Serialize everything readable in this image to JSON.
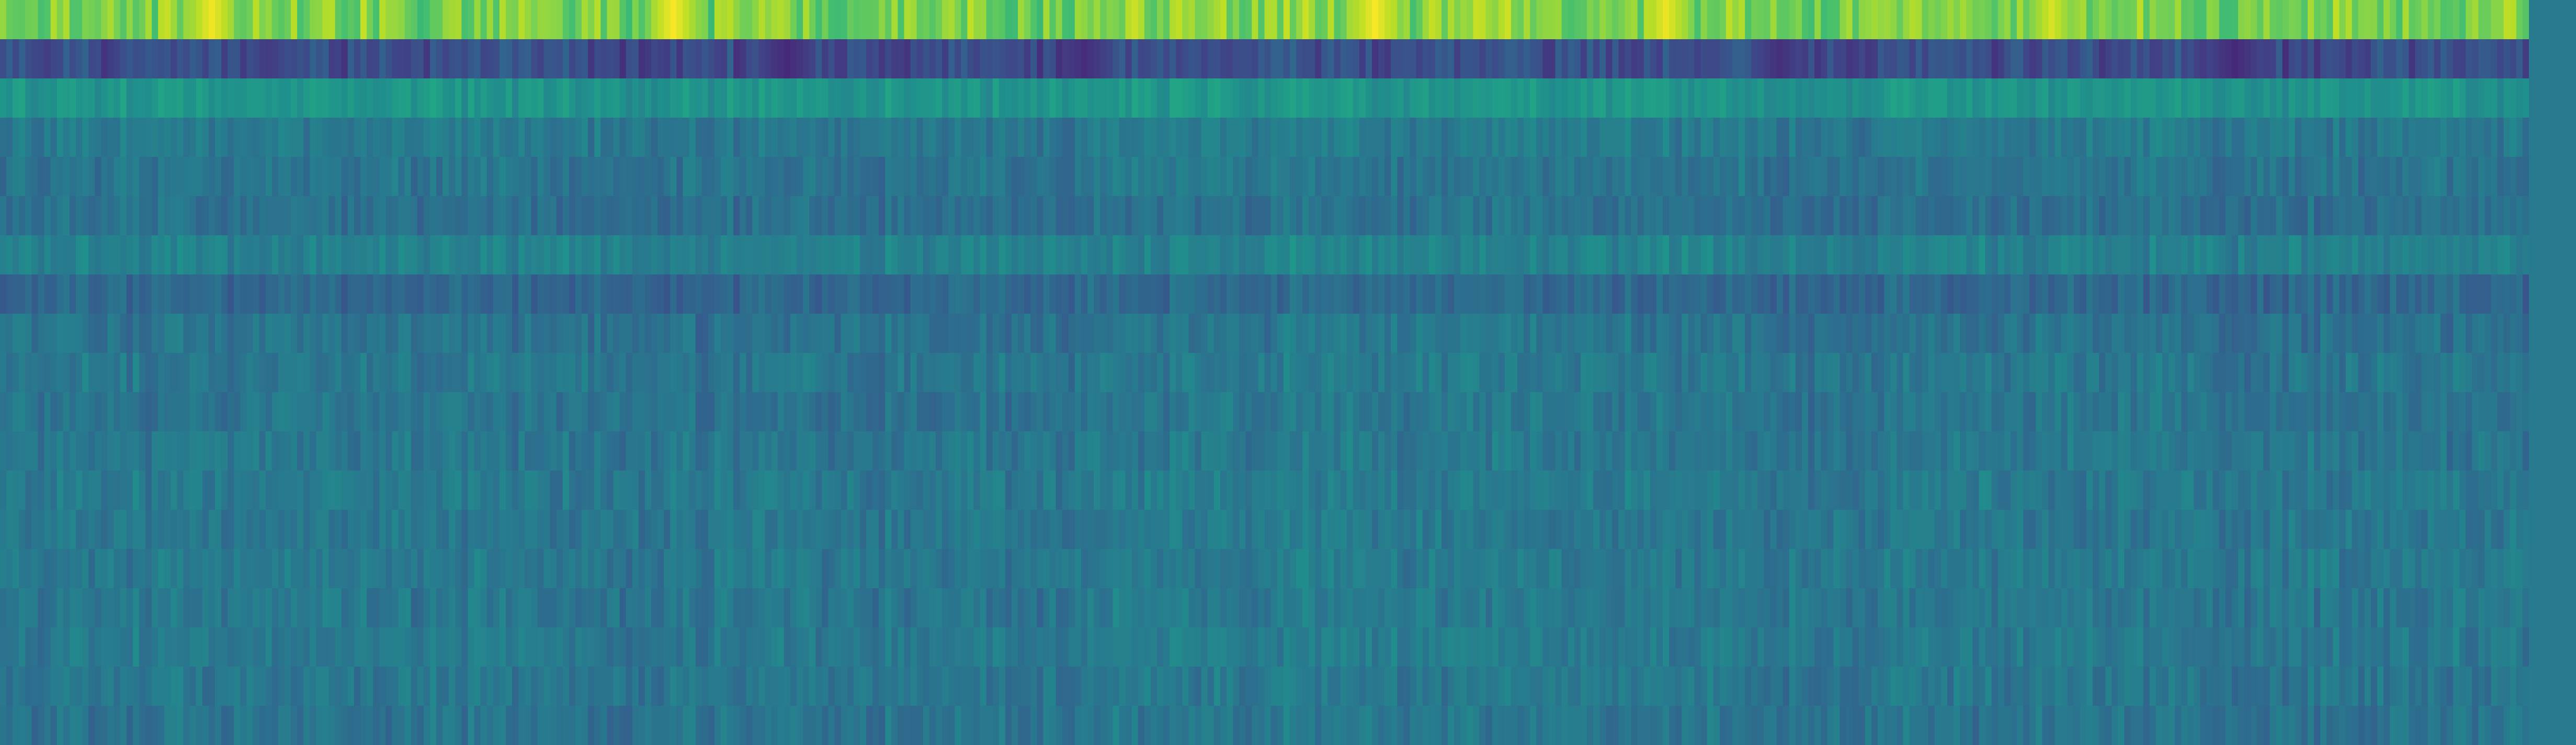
{
  "chart_data": {
    "type": "heatmap",
    "colormap": "viridis",
    "n_rows": 19,
    "n_cols": 400,
    "value_range": [
      0,
      1
    ],
    "grid": false,
    "legend": "none",
    "title": "",
    "xlabel": "",
    "ylabel": "",
    "segment_boundaries_col": [
      0,
      88,
      176,
      264,
      400
    ],
    "row_profiles": [
      {
        "row": 1,
        "mean": 0.8,
        "spread": 0.1,
        "clip": [
          0.6,
          1.0
        ]
      },
      {
        "row": 2,
        "mean": 0.24,
        "spread": 0.07,
        "clip": [
          0.08,
          0.35
        ]
      },
      {
        "row": 3,
        "mean": 0.52,
        "spread": 0.05,
        "clip": [
          0.4,
          0.66
        ]
      },
      {
        "row": 4,
        "mean": 0.41,
        "spread": 0.05,
        "clip": [
          0.28,
          0.54
        ]
      },
      {
        "row": 5,
        "mean": 0.39,
        "spread": 0.05,
        "clip": [
          0.26,
          0.52
        ]
      },
      {
        "row": 6,
        "mean": 0.37,
        "spread": 0.05,
        "clip": [
          0.24,
          0.52
        ]
      },
      {
        "row": 7,
        "mean": 0.44,
        "spread": 0.05,
        "clip": [
          0.3,
          0.56
        ]
      },
      {
        "row": 8,
        "mean": 0.34,
        "spread": 0.05,
        "clip": [
          0.22,
          0.48
        ]
      },
      {
        "row": 9,
        "mean": 0.38,
        "spread": 0.05,
        "clip": [
          0.26,
          0.52
        ]
      },
      {
        "row": 10,
        "mean": 0.4,
        "spread": 0.05,
        "clip": [
          0.26,
          0.54
        ]
      },
      {
        "row": 11,
        "mean": 0.39,
        "spread": 0.05,
        "clip": [
          0.26,
          0.54
        ]
      },
      {
        "row": 12,
        "mean": 0.4,
        "spread": 0.05,
        "clip": [
          0.26,
          0.56
        ]
      },
      {
        "row": 13,
        "mean": 0.41,
        "spread": 0.05,
        "clip": [
          0.26,
          0.58
        ]
      },
      {
        "row": 14,
        "mean": 0.4,
        "spread": 0.05,
        "clip": [
          0.26,
          0.58
        ]
      },
      {
        "row": 15,
        "mean": 0.41,
        "spread": 0.05,
        "clip": [
          0.26,
          0.6
        ]
      },
      {
        "row": 16,
        "mean": 0.4,
        "spread": 0.05,
        "clip": [
          0.26,
          0.6
        ]
      },
      {
        "row": 17,
        "mean": 0.41,
        "spread": 0.05,
        "clip": [
          0.26,
          0.6
        ]
      },
      {
        "row": 18,
        "mean": 0.4,
        "spread": 0.05,
        "clip": [
          0.26,
          0.6
        ]
      },
      {
        "row": 19,
        "mean": 0.39,
        "spread": 0.05,
        "clip": [
          0.26,
          0.58
        ]
      }
    ],
    "highlight_peaks_row1": [
      {
        "col": 33,
        "value": 0.98
      },
      {
        "col": 106,
        "value": 0.99
      },
      {
        "col": 217,
        "value": 0.99
      },
      {
        "col": 263,
        "value": 0.97
      },
      {
        "col": 324,
        "value": 0.94
      }
    ],
    "low_bands_row2": [
      {
        "col": 42,
        "value": 0.18
      },
      {
        "col": 124,
        "value": 0.12
      },
      {
        "col": 171,
        "value": 0.13
      },
      {
        "col": 281,
        "value": 0.14
      },
      {
        "col": 353,
        "value": 0.12
      }
    ],
    "colors": {
      "background": "#ffffff",
      "low": "#440154",
      "high": "#fde725"
    }
  }
}
